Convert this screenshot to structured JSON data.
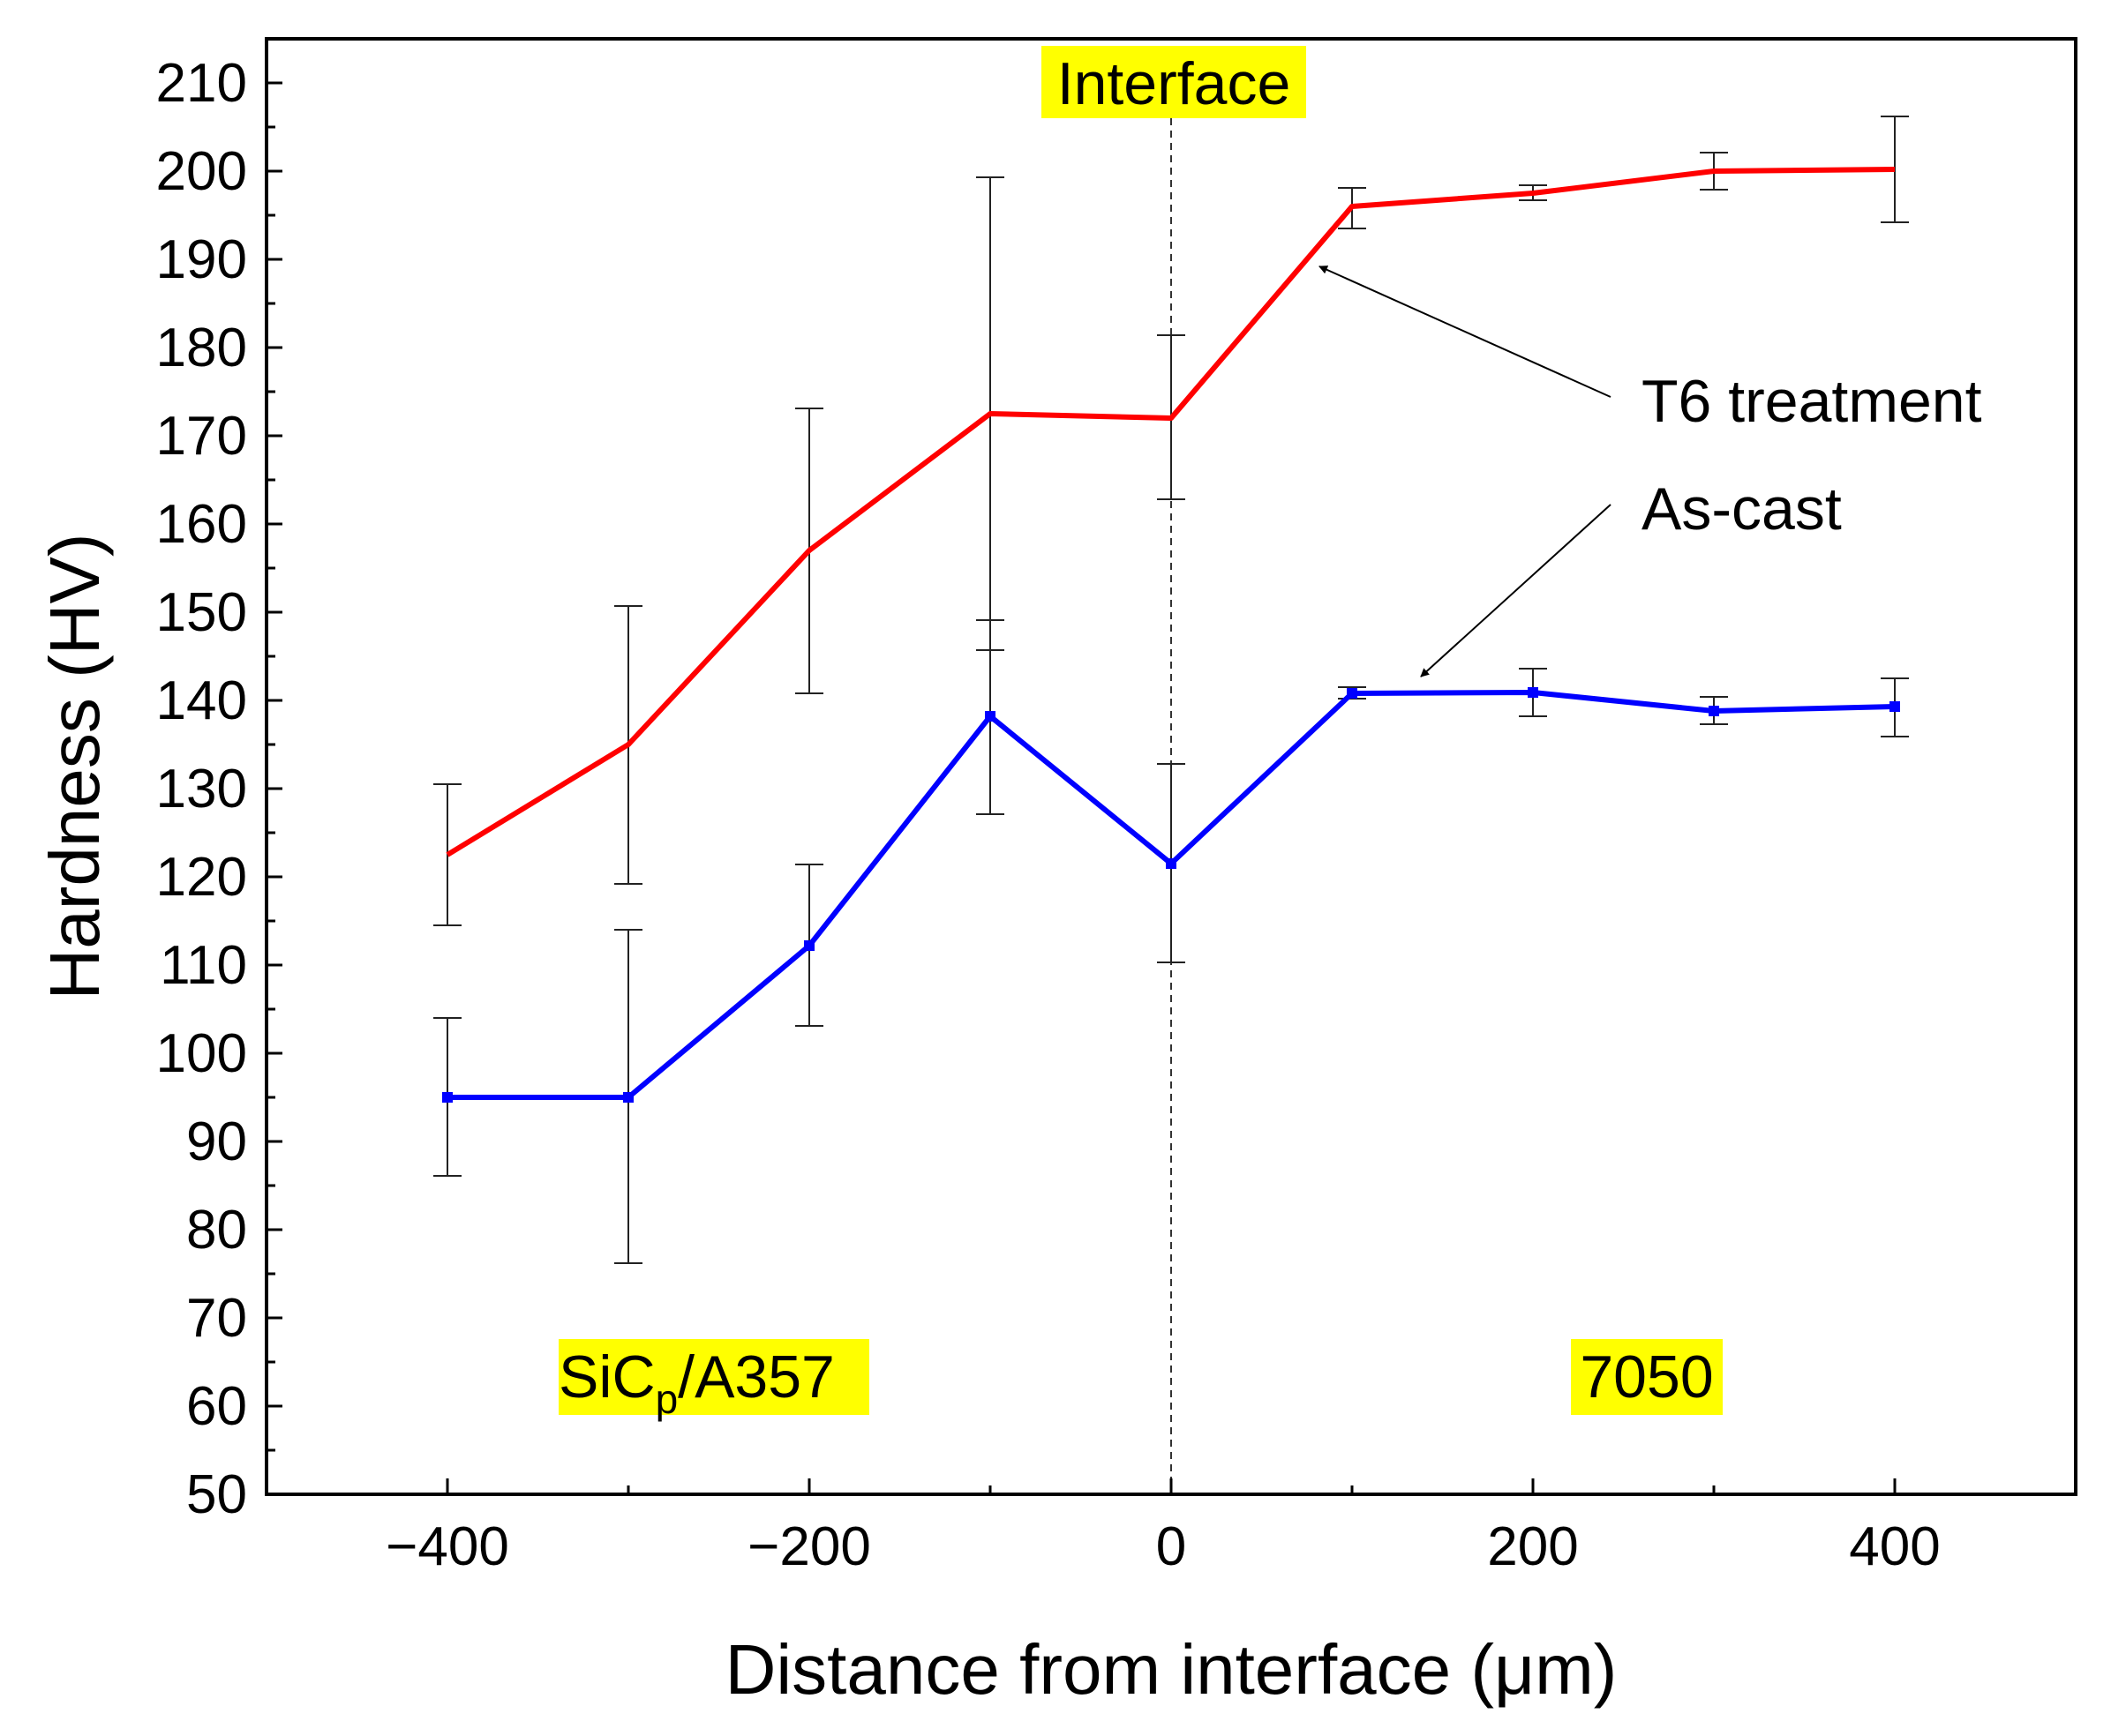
{
  "chart_data": {
    "type": "line",
    "xlabel": "Distance from interface (μm)",
    "ylabel": "Hardness (HV)",
    "xlim": [
      -500,
      500
    ],
    "ylim": [
      50,
      215
    ],
    "xticks": [
      -400,
      -200,
      0,
      200,
      400
    ],
    "xtick_labels": [
      "−400",
      "−200",
      "0",
      "200",
      "400"
    ],
    "yticks": [
      50,
      60,
      70,
      80,
      90,
      100,
      110,
      120,
      130,
      140,
      150,
      160,
      170,
      180,
      190,
      200,
      210
    ],
    "grid": false,
    "interface_x": 0,
    "series": [
      {
        "name": "T6 treatment",
        "color": "#ff0000",
        "x": [
          -400,
          -300,
          -200,
          -100,
          0,
          100,
          200,
          300,
          400
        ],
        "y": [
          122.5,
          135,
          157,
          172.5,
          172,
          196,
          197.5,
          200,
          200.2
        ],
        "err_low": [
          114.5,
          119.2,
          140.8,
          145.7,
          162.8,
          193.5,
          196.7,
          197.9,
          194.2
        ],
        "err_high": [
          130.5,
          150.7,
          173.1,
          199.3,
          181.4,
          198.1,
          198.4,
          202.1,
          206.2
        ]
      },
      {
        "name": "As-cast",
        "color": "#0000ff",
        "x": [
          -400,
          -300,
          -200,
          -100,
          0,
          100,
          200,
          300,
          400
        ],
        "y": [
          95,
          95,
          112.2,
          138.2,
          121.5,
          140.8,
          140.9,
          138.8,
          139.3
        ],
        "err_low": [
          86.1,
          76.2,
          103.1,
          127.1,
          110.3,
          140.2,
          138.2,
          137.3,
          135.9
        ],
        "err_high": [
          104,
          114,
          121.4,
          149.1,
          132.8,
          141.5,
          143.6,
          140.4,
          142.5
        ]
      }
    ],
    "annotations": {
      "interface": "Interface",
      "t6": "T6 treatment",
      "ascast": "As-cast",
      "region_left_main": "SiC",
      "region_left_sub": "p",
      "region_left_tail": "/A357",
      "region_right": "7050"
    },
    "highlight_color": "#ffff00"
  }
}
